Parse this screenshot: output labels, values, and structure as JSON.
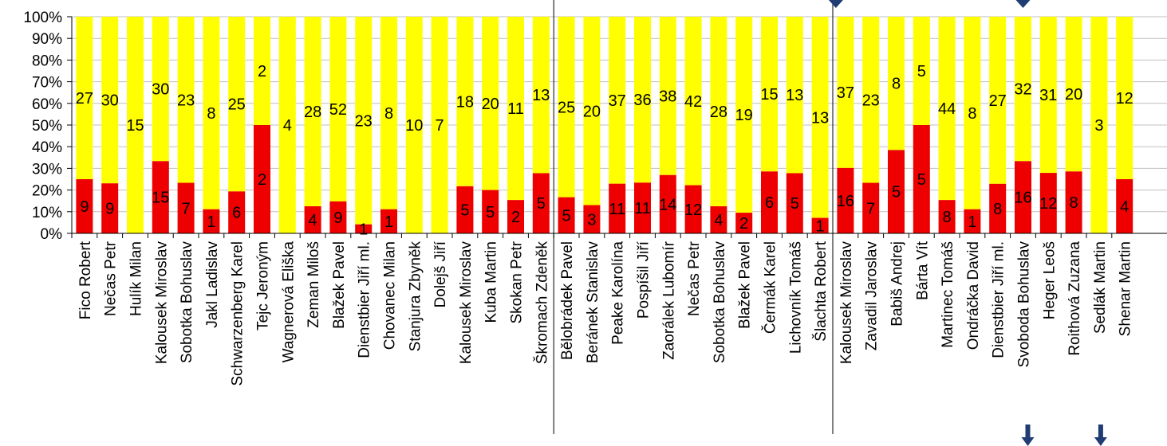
{
  "chart_data": {
    "type": "bar",
    "stacked": "percent",
    "ylim": [
      0,
      100
    ],
    "yticks": [
      "0%",
      "10%",
      "20%",
      "30%",
      "40%",
      "50%",
      "60%",
      "70%",
      "80%",
      "90%",
      "100%"
    ],
    "colors": {
      "red": "#ee0000",
      "yellow": "#ffff00",
      "marker": "#1f3c73"
    },
    "categories": [
      "Fico Robert",
      "Nečas Petr",
      "Hulík Milan",
      "Kalousek Miroslav",
      "Sobotka Bohuslav",
      "Jakl Ladislav",
      "Schwarzenberg Karel",
      "Tejc Jeroným",
      "Wagnerová Eliška",
      "Zeman Miloš",
      "Blažek Pavel",
      "Dienstbier Jiří ml.",
      "Chovanec Milan",
      "Stanjura Zbyněk",
      "Dolejš Jiří",
      "Kalousek Miroslav",
      "Kuba Martin",
      "Skokan Petr",
      "Škromach Zdeněk",
      "Bělobrádek Pavel",
      "Beránek Stanislav",
      "Peake Karolína",
      "Pospíšil Jiří",
      "Zaorálek Lubomír",
      "Nečas Petr",
      "Sobotka Bohuslav",
      "Blažek Pavel",
      "Čermák Karel",
      "Lichovník Tomáš",
      "Šlachta Robert",
      "Kalousek Miroslav",
      "Zavadil Jaroslav",
      "Babiš Andrej",
      "Bárta Vít",
      "Martinec Tomáš",
      "Ondráčka David",
      "Dienstbier Jiří ml.",
      "Svoboda Bohuslav",
      "Heger Leoš",
      "Roithová Zuzana",
      "Sedlák Martin",
      "Shenar Martin"
    ],
    "series": [
      {
        "color": "red",
        "values": [
          9,
          9,
          0,
          15,
          7,
          1,
          6,
          2,
          0,
          4,
          9,
          1,
          1,
          0,
          0,
          5,
          5,
          2,
          5,
          5,
          3,
          11,
          11,
          14,
          12,
          4,
          2,
          6,
          5,
          1,
          16,
          7,
          5,
          5,
          8,
          1,
          8,
          16,
          12,
          8,
          0,
          4
        ]
      },
      {
        "color": "yellow",
        "values": [
          27,
          30,
          15,
          30,
          23,
          8,
          25,
          2,
          4,
          28,
          52,
          23,
          8,
          10,
          7,
          18,
          20,
          11,
          13,
          25,
          20,
          37,
          36,
          38,
          42,
          28,
          19,
          15,
          13,
          13,
          37,
          23,
          8,
          5,
          44,
          8,
          27,
          32,
          31,
          20,
          3,
          12
        ]
      }
    ]
  }
}
